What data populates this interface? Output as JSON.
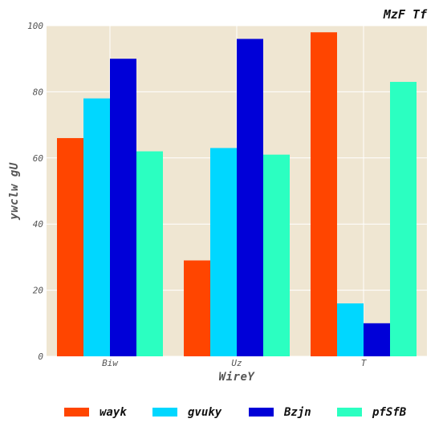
{
  "chart_data": {
    "type": "bar",
    "title": "MzF Tf",
    "xlabel": "WireY",
    "ylabel": "ywclw gU",
    "categories": [
      "Biw",
      "Uz",
      "T"
    ],
    "series": [
      {
        "name": "wayk",
        "values": [
          66,
          29,
          98
        ],
        "color": "#ff4500"
      },
      {
        "name": "gvuky",
        "values": [
          78,
          63,
          16
        ],
        "color": "#00d7ff"
      },
      {
        "name": "Bzjn",
        "values": [
          90,
          96,
          10
        ],
        "color": "#0000d8"
      },
      {
        "name": "pfSfB",
        "values": [
          62,
          61,
          83
        ],
        "color": "#2bffc1"
      }
    ],
    "ylim": [
      0,
      100
    ],
    "yticks": [
      0,
      20,
      40,
      60,
      80,
      100
    ],
    "grid": true,
    "legend_position": "bottom",
    "plot_background": "#efe6d2"
  }
}
